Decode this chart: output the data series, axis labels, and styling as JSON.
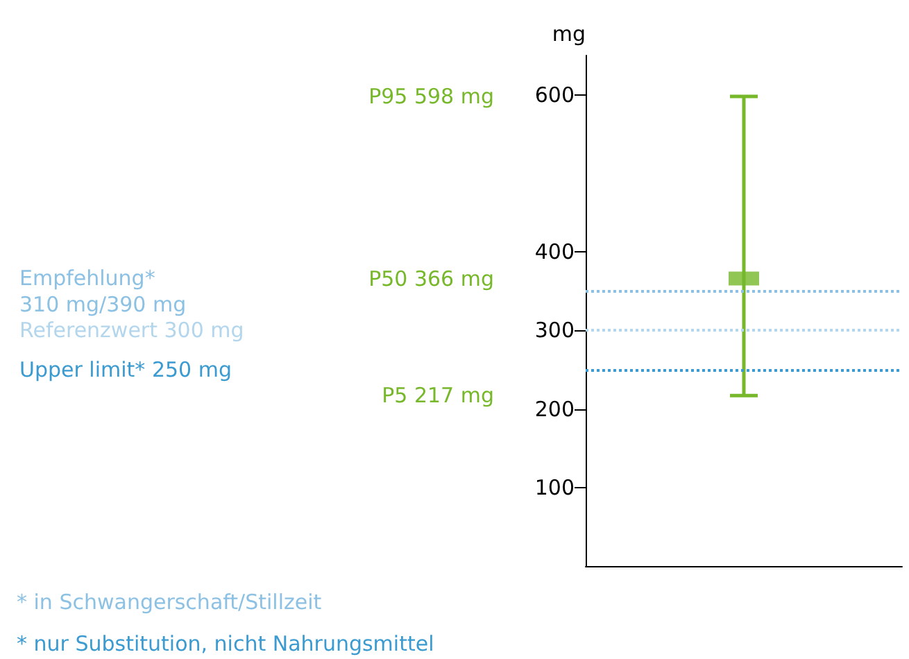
{
  "chart_data": {
    "type": "scatter",
    "ylabel": "mg",
    "categories": [
      null
    ],
    "series": [
      {
        "color": "#76b82a",
        "values": [
          366
        ],
        "errors": [
          [
            217,
            598
          ]
        ]
      }
    ],
    "ylim": [
      0,
      650
    ],
    "yticks": [
      100,
      200,
      300,
      400,
      600
    ],
    "tick_labels": "y",
    "grid": false,
    "marker": "square",
    "ref_lines": [
      {
        "axis": "y",
        "value": 350,
        "label": "Empfehlung*\n310 mg/390 mg",
        "color": "#8cc1e4",
        "line_style": "dotted"
      },
      {
        "axis": "y",
        "value": 300,
        "label": "Referenzwert 300 mg",
        "color": "#b3d6ec",
        "line_style": "dotted"
      },
      {
        "axis": "y",
        "value": 250,
        "label": "Upper limit* 250 mg",
        "color": "#3b9bd1",
        "line_style": "dotted"
      }
    ],
    "annotations": [
      "P95 598 mg",
      "P50 366 mg",
      "P5 217 mg",
      "* in Schwangerschaft/Stillzeit",
      "* nur Substitution, nicht Nahrungsmittel"
    ]
  }
}
